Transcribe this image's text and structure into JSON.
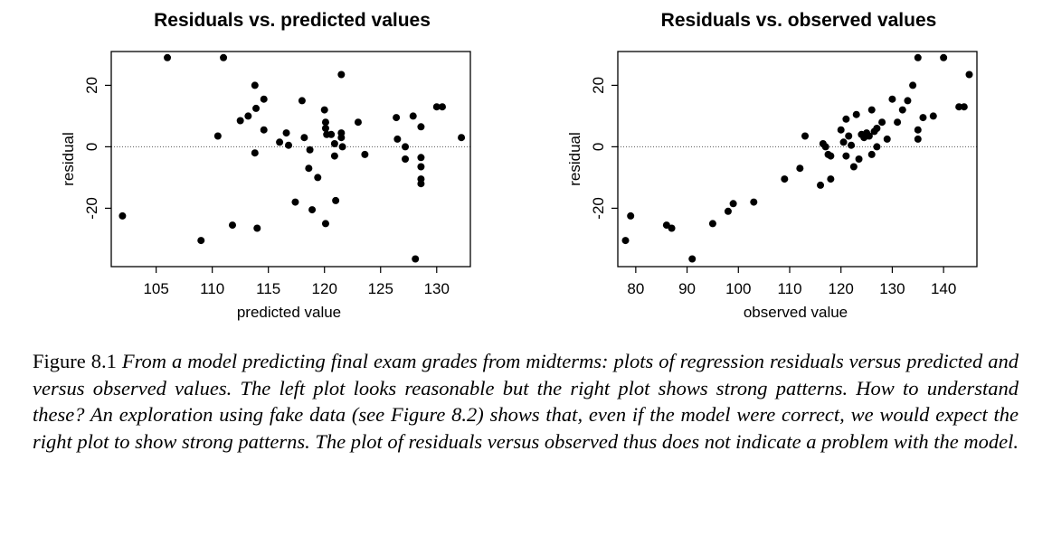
{
  "chart_data": [
    {
      "type": "scatter",
      "title": "Residuals vs. predicted values",
      "xlabel": "predicted value",
      "ylabel": "residual",
      "xlim": [
        101,
        133
      ],
      "ylim": [
        -39,
        31
      ],
      "xticks": [
        105,
        110,
        115,
        120,
        125,
        130
      ],
      "yticks": [
        -20,
        0,
        20
      ],
      "reference_line": 0,
      "grid": false,
      "points": [
        [
          102,
          -22.5
        ],
        [
          106,
          29
        ],
        [
          109,
          -30.5
        ],
        [
          110.5,
          3.5
        ],
        [
          111,
          29
        ],
        [
          111.8,
          -25.5
        ],
        [
          112.5,
          8.5
        ],
        [
          113.2,
          10
        ],
        [
          113.8,
          20
        ],
        [
          113.9,
          12.5
        ],
        [
          113.8,
          -2
        ],
        [
          114,
          -26.5
        ],
        [
          114.6,
          15.5
        ],
        [
          114.6,
          5.5
        ],
        [
          116,
          1.5
        ],
        [
          116.6,
          4.5
        ],
        [
          116.8,
          0.5
        ],
        [
          117.4,
          -18
        ],
        [
          118,
          15
        ],
        [
          118.2,
          3
        ],
        [
          118.6,
          -7
        ],
        [
          118.7,
          -1
        ],
        [
          118.9,
          -20.5
        ],
        [
          119.4,
          -10
        ],
        [
          120,
          12
        ],
        [
          120.1,
          8
        ],
        [
          120.1,
          6
        ],
        [
          120.2,
          4
        ],
        [
          120.1,
          -25
        ],
        [
          120.6,
          4
        ],
        [
          120.9,
          1
        ],
        [
          120.9,
          -3
        ],
        [
          121,
          -17.5
        ],
        [
          121.5,
          23.5
        ],
        [
          121.5,
          4.5
        ],
        [
          121.5,
          3
        ],
        [
          121.6,
          0
        ],
        [
          123,
          8
        ],
        [
          123.6,
          -2.5
        ],
        [
          126.4,
          9.5
        ],
        [
          126.5,
          2.5
        ],
        [
          127.2,
          0
        ],
        [
          127.2,
          -4
        ],
        [
          127.9,
          10
        ],
        [
          128.1,
          -36.5
        ],
        [
          128.6,
          6.5
        ],
        [
          128.6,
          -3.5
        ],
        [
          128.6,
          -6.5
        ],
        [
          128.6,
          -10.5
        ],
        [
          128.6,
          -12
        ],
        [
          130,
          13
        ],
        [
          130.5,
          13
        ],
        [
          132.2,
          3
        ]
      ]
    },
    {
      "type": "scatter",
      "title": "Residuals vs. observed values",
      "xlabel": "observed value",
      "ylabel": "residual",
      "xlim": [
        76.5,
        146.5
      ],
      "ylim": [
        -39,
        31
      ],
      "xticks": [
        80,
        90,
        100,
        110,
        120,
        130,
        140
      ],
      "yticks": [
        -20,
        0,
        20
      ],
      "reference_line": 0,
      "grid": false,
      "points": [
        [
          78,
          -30.5
        ],
        [
          79,
          -22.5
        ],
        [
          86,
          -25.5
        ],
        [
          87,
          -26.5
        ],
        [
          91,
          -36.5
        ],
        [
          95,
          -25
        ],
        [
          98,
          -21
        ],
        [
          99,
          -18.5
        ],
        [
          103,
          -18
        ],
        [
          109,
          -10.5
        ],
        [
          112,
          -7
        ],
        [
          113,
          3.5
        ],
        [
          116,
          -12.5
        ],
        [
          116.5,
          1
        ],
        [
          117,
          0
        ],
        [
          117.5,
          -2.5
        ],
        [
          118,
          -10.5
        ],
        [
          118,
          -3
        ],
        [
          120,
          5.5
        ],
        [
          120.5,
          1.5
        ],
        [
          121,
          9
        ],
        [
          121,
          -3
        ],
        [
          121.5,
          3.5
        ],
        [
          122,
          0.5
        ],
        [
          122.5,
          -6.5
        ],
        [
          123,
          10.5
        ],
        [
          123.5,
          -4
        ],
        [
          124,
          4
        ],
        [
          124.5,
          3
        ],
        [
          125,
          4.5
        ],
        [
          125.5,
          3.5
        ],
        [
          126,
          12
        ],
        [
          126,
          -2.5
        ],
        [
          126.5,
          5
        ],
        [
          127,
          6
        ],
        [
          127,
          0
        ],
        [
          128,
          8
        ],
        [
          129,
          2.5
        ],
        [
          130,
          15.5
        ],
        [
          131,
          8
        ],
        [
          132,
          12
        ],
        [
          133,
          15
        ],
        [
          134,
          20
        ],
        [
          135,
          29
        ],
        [
          135,
          5.5
        ],
        [
          135,
          2.5
        ],
        [
          136,
          9.5
        ],
        [
          138,
          10
        ],
        [
          140,
          29
        ],
        [
          143,
          13
        ],
        [
          144,
          13
        ],
        [
          145,
          23.5
        ]
      ]
    }
  ],
  "caption": {
    "figure_number": "Figure 8.1",
    "text": "From a model predicting final exam grades from midterms: plots of regression residuals versus predicted and versus observed values. The left plot looks reasonable but the right plot shows strong patterns. How to understand these? An exploration using fake data (see Figure 8.2) shows that, even if the model were correct, we would expect the right plot to show strong patterns. The plot of residuals versus observed thus does not indicate a problem with the model."
  }
}
